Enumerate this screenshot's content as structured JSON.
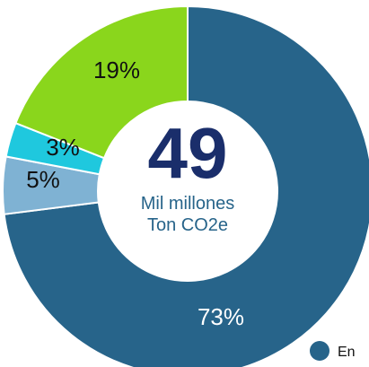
{
  "chart_data": {
    "type": "pie",
    "donut": true,
    "categories": [
      "",
      "",
      "",
      ""
    ],
    "values": [
      73,
      5,
      3,
      19
    ],
    "value_labels": [
      "73%",
      "5%",
      "3%",
      "19%"
    ],
    "colors": [
      "#27648a",
      "#7fb2d3",
      "#1fc8de",
      "#8ad61c"
    ],
    "label_colors": [
      "#ffffff",
      "#111111",
      "#111111",
      "#111111"
    ],
    "center": {
      "value": "49",
      "value_color": "#1a2e6b",
      "line1": "Mil millones",
      "line2": "Ton CO2e",
      "sub_color": "#27648a"
    },
    "legend": {
      "placement": "bottom-right",
      "entries": [
        {
          "label": "En",
          "color": "#27648a"
        }
      ]
    }
  }
}
